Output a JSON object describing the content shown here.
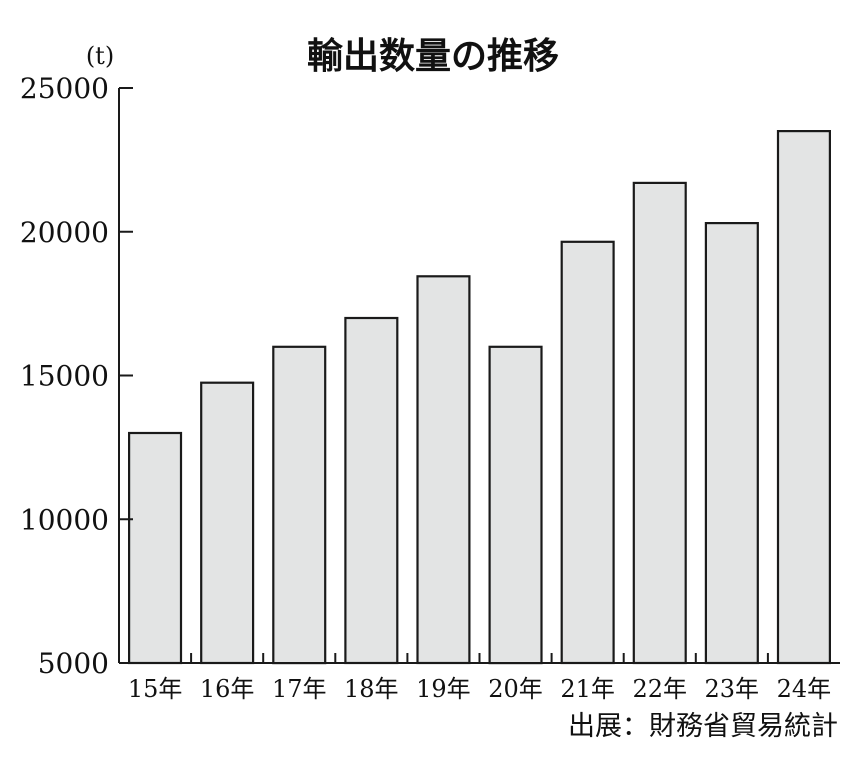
{
  "chart_data": {
    "type": "bar",
    "title": "輸出数量の推移",
    "unit_label": "(t)",
    "categories": [
      "15年",
      "16年",
      "17年",
      "18年",
      "19年",
      "20年",
      "21年",
      "22年",
      "23年",
      "24年"
    ],
    "values": [
      13000,
      14750,
      16000,
      17000,
      18450,
      16000,
      19650,
      21700,
      20300,
      23500
    ],
    "ylim": [
      5000,
      25000
    ],
    "yticks": [
      5000,
      10000,
      15000,
      20000,
      25000
    ],
    "xlabel": "",
    "ylabel": "",
    "grid": false,
    "bar_color": "#e3e4e4",
    "source": "出展：財務省貿易統計"
  }
}
